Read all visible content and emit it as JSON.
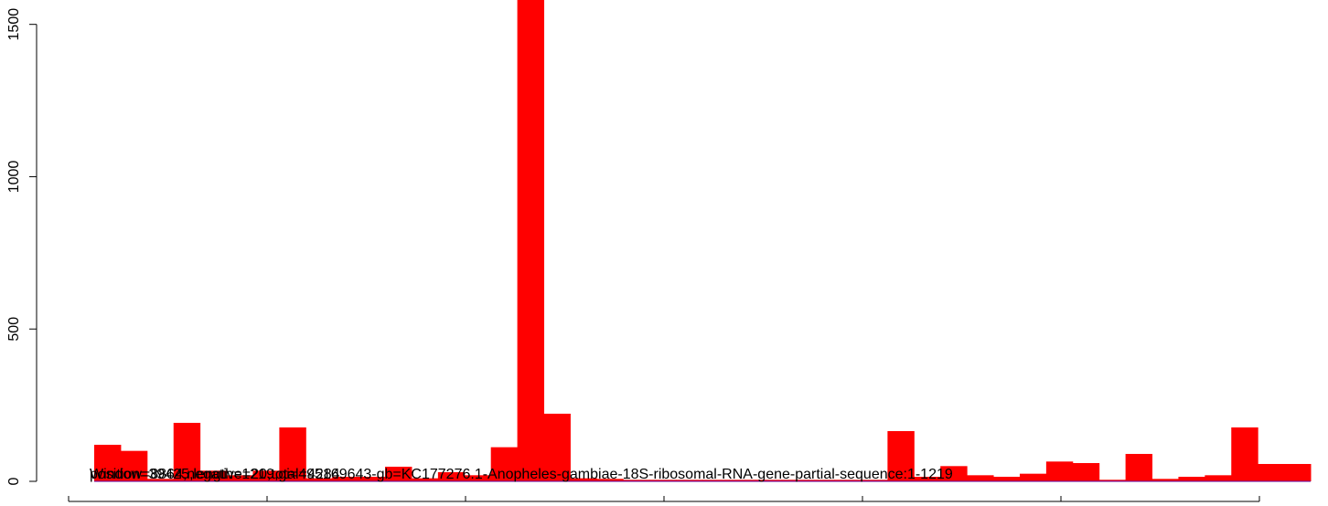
{
  "chart_data": {
    "type": "bar",
    "title": "",
    "xlabel": "",
    "ylabel": "",
    "ylim": [
      0,
      1580
    ],
    "y_ticks": [
      0,
      500,
      1000,
      1500
    ],
    "y_tick_labels": [
      "0",
      "500",
      "1000",
      "1500"
    ],
    "grid": false,
    "legend": "none",
    "bar_color": "#ff0000",
    "values": [
      120,
      100,
      8,
      192,
      35,
      20,
      35,
      177,
      10,
      15,
      15,
      48,
      10,
      30,
      20,
      112,
      1580,
      222,
      10,
      8,
      5,
      5,
      5,
      5,
      5,
      5,
      5,
      5,
      5,
      5,
      165,
      15,
      50,
      20,
      15,
      25,
      65,
      60,
      5,
      90,
      8,
      15,
      20,
      177,
      57,
      57
    ],
    "overlaid_labels": [
      "Window=8864,negative=20,total=4284",
      "position=39425,length=1219,gi=495169643-gb=KC177276.1-Anopheles-gambiae-18S-ribosomal-RNA-gene-partial-sequence:1-1219"
    ],
    "axis_labels_rotated": true
  }
}
